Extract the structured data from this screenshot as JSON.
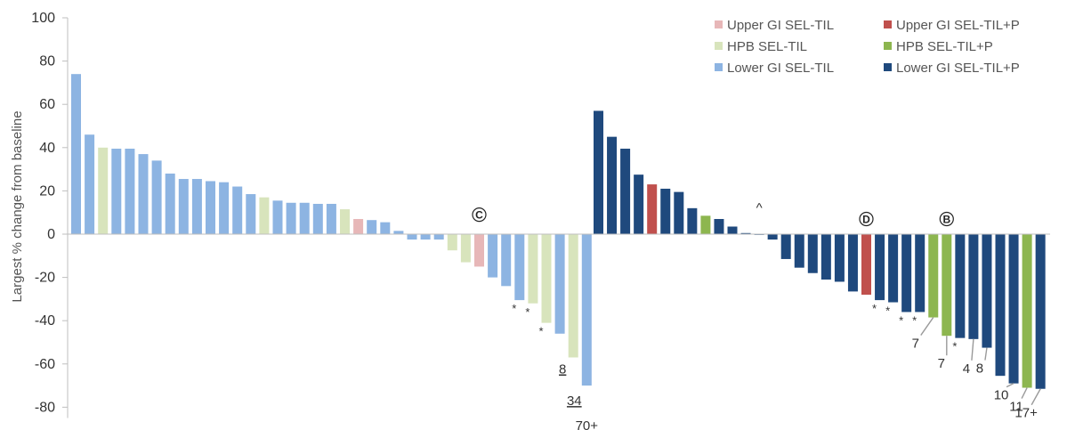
{
  "chart_data": {
    "type": "bar",
    "title": "",
    "xlabel": "",
    "ylabel": "Largest % change from baseline",
    "ylim": [
      -85,
      100
    ],
    "yticks": [
      100,
      80,
      60,
      40,
      20,
      0,
      -20,
      -40,
      -60,
      -80
    ],
    "grid": false,
    "legend_position": "top-right",
    "colors": {
      "upper_sel": "#e7b7b8",
      "upper_selp": "#c0504d",
      "hpb_sel": "#d8e4bc",
      "hpb_selp": "#8db64f",
      "lower_sel": "#8db4e2",
      "lower_selp": "#1f497d"
    },
    "legend": [
      {
        "key": "upper_sel",
        "label": "Upper GI SEL-TIL"
      },
      {
        "key": "upper_selp",
        "label": "Upper GI SEL-TIL+P"
      },
      {
        "key": "hpb_sel",
        "label": "HPB SEL-TIL"
      },
      {
        "key": "hpb_selp",
        "label": "HPB SEL-TIL+P"
      },
      {
        "key": "lower_sel",
        "label": "Lower GI SEL-TIL"
      },
      {
        "key": "lower_selp",
        "label": "Lower GI SEL-TIL+P"
      }
    ],
    "series": [
      {
        "key": "group_a",
        "values": [
          {
            "v": 74,
            "c": "lower_sel"
          },
          {
            "v": 46,
            "c": "lower_sel"
          },
          {
            "v": 40,
            "c": "hpb_sel"
          },
          {
            "v": 39.5,
            "c": "lower_sel"
          },
          {
            "v": 39.5,
            "c": "lower_sel"
          },
          {
            "v": 37,
            "c": "lower_sel"
          },
          {
            "v": 34,
            "c": "lower_sel"
          },
          {
            "v": 28,
            "c": "lower_sel"
          },
          {
            "v": 25.5,
            "c": "lower_sel"
          },
          {
            "v": 25.5,
            "c": "lower_sel"
          },
          {
            "v": 24.5,
            "c": "lower_sel"
          },
          {
            "v": 24,
            "c": "lower_sel"
          },
          {
            "v": 22,
            "c": "lower_sel"
          },
          {
            "v": 18.5,
            "c": "lower_sel"
          },
          {
            "v": 17,
            "c": "hpb_sel"
          },
          {
            "v": 15.5,
            "c": "lower_sel"
          },
          {
            "v": 14.5,
            "c": "lower_sel"
          },
          {
            "v": 14.5,
            "c": "lower_sel"
          },
          {
            "v": 14,
            "c": "lower_sel"
          },
          {
            "v": 14,
            "c": "lower_sel"
          },
          {
            "v": 11.5,
            "c": "hpb_sel"
          },
          {
            "v": 7,
            "c": "upper_sel"
          },
          {
            "v": 6.5,
            "c": "lower_sel"
          },
          {
            "v": 5.5,
            "c": "lower_sel"
          },
          {
            "v": 1.5,
            "c": "lower_sel"
          },
          {
            "v": -2.5,
            "c": "lower_sel"
          },
          {
            "v": -2.5,
            "c": "lower_sel"
          },
          {
            "v": -2.5,
            "c": "lower_sel"
          },
          {
            "v": -7.5,
            "c": "hpb_sel"
          },
          {
            "v": -13,
            "c": "hpb_sel"
          },
          {
            "v": -15,
            "c": "upper_sel"
          },
          {
            "v": -20,
            "c": "lower_sel"
          },
          {
            "v": -24,
            "c": "lower_sel"
          },
          {
            "v": -30.5,
            "c": "lower_sel"
          },
          {
            "v": -32,
            "c": "hpb_sel"
          },
          {
            "v": -41,
            "c": "hpb_sel"
          },
          {
            "v": -46,
            "c": "lower_sel"
          },
          {
            "v": -57,
            "c": "hpb_sel"
          },
          {
            "v": -70,
            "c": "lower_sel"
          }
        ]
      },
      {
        "key": "group_b",
        "values": [
          {
            "v": 57,
            "c": "lower_selp"
          },
          {
            "v": 45,
            "c": "lower_selp"
          },
          {
            "v": 39.5,
            "c": "lower_selp"
          },
          {
            "v": 27.5,
            "c": "lower_selp"
          },
          {
            "v": 23,
            "c": "upper_selp"
          },
          {
            "v": 21,
            "c": "lower_selp"
          },
          {
            "v": 19.5,
            "c": "lower_selp"
          },
          {
            "v": 12,
            "c": "lower_selp"
          },
          {
            "v": 8.5,
            "c": "hpb_selp"
          },
          {
            "v": 7,
            "c": "lower_selp"
          },
          {
            "v": 3.5,
            "c": "lower_selp"
          },
          {
            "v": 0.5,
            "c": "lower_selp"
          },
          {
            "v": 0,
            "c": "lower_selp"
          },
          {
            "v": -2.5,
            "c": "lower_selp"
          },
          {
            "v": -11.5,
            "c": "lower_selp"
          },
          {
            "v": -15.5,
            "c": "lower_selp"
          },
          {
            "v": -18,
            "c": "lower_selp"
          },
          {
            "v": -21,
            "c": "lower_selp"
          },
          {
            "v": -22,
            "c": "lower_selp"
          },
          {
            "v": -26.5,
            "c": "lower_selp"
          },
          {
            "v": -28,
            "c": "upper_selp"
          },
          {
            "v": -30.5,
            "c": "lower_selp"
          },
          {
            "v": -31.5,
            "c": "lower_selp"
          },
          {
            "v": -36,
            "c": "lower_selp"
          },
          {
            "v": -36,
            "c": "lower_selp"
          },
          {
            "v": -38.5,
            "c": "hpb_selp"
          },
          {
            "v": -47,
            "c": "hpb_selp"
          },
          {
            "v": -48,
            "c": "lower_selp"
          },
          {
            "v": -48.5,
            "c": "lower_selp"
          },
          {
            "v": -52.5,
            "c": "lower_selp"
          },
          {
            "v": -65.5,
            "c": "lower_selp"
          },
          {
            "v": -69,
            "c": "lower_selp"
          },
          {
            "v": -71,
            "c": "hpb_selp"
          },
          {
            "v": -71.5,
            "c": "lower_selp"
          }
        ]
      }
    ],
    "annotations": {
      "circled": [
        {
          "text": "C",
          "series": 0,
          "index": 30,
          "value": 9
        },
        {
          "text": "D",
          "series": 1,
          "index": 20,
          "value": 7
        },
        {
          "text": "B",
          "series": 1,
          "index": 26,
          "value": 7
        }
      ],
      "caret": {
        "text": "^",
        "series": 1,
        "index": 12,
        "value": 10
      },
      "stars": [
        {
          "series": 0,
          "index": 33
        },
        {
          "series": 0,
          "index": 34
        },
        {
          "series": 0,
          "index": 35
        },
        {
          "series": 1,
          "index": 21
        },
        {
          "series": 1,
          "index": 22
        },
        {
          "series": 1,
          "index": 23
        },
        {
          "series": 1,
          "index": 24
        },
        {
          "series": 1,
          "index": 27
        }
      ],
      "bar_labels": [
        {
          "text": "8",
          "series": 0,
          "index": 37,
          "underline": true
        },
        {
          "text": "34",
          "series": 0,
          "index": 38,
          "underline": true
        },
        {
          "text": "70+",
          "series": 0,
          "index": 38,
          "underline": false
        },
        {
          "text": "7",
          "series": 1,
          "index": 25,
          "underline": false
        },
        {
          "text": "7",
          "series": 1,
          "index": 26,
          "underline": false
        },
        {
          "text": "4",
          "series": 1,
          "index": 28,
          "underline": false
        },
        {
          "text": "8",
          "series": 1,
          "index": 29,
          "underline": false
        },
        {
          "text": "10",
          "series": 1,
          "index": 31,
          "underline": false
        },
        {
          "text": "11",
          "series": 1,
          "index": 32,
          "underline": false
        },
        {
          "text": "17+",
          "series": 1,
          "index": 33,
          "underline": false
        }
      ]
    }
  }
}
